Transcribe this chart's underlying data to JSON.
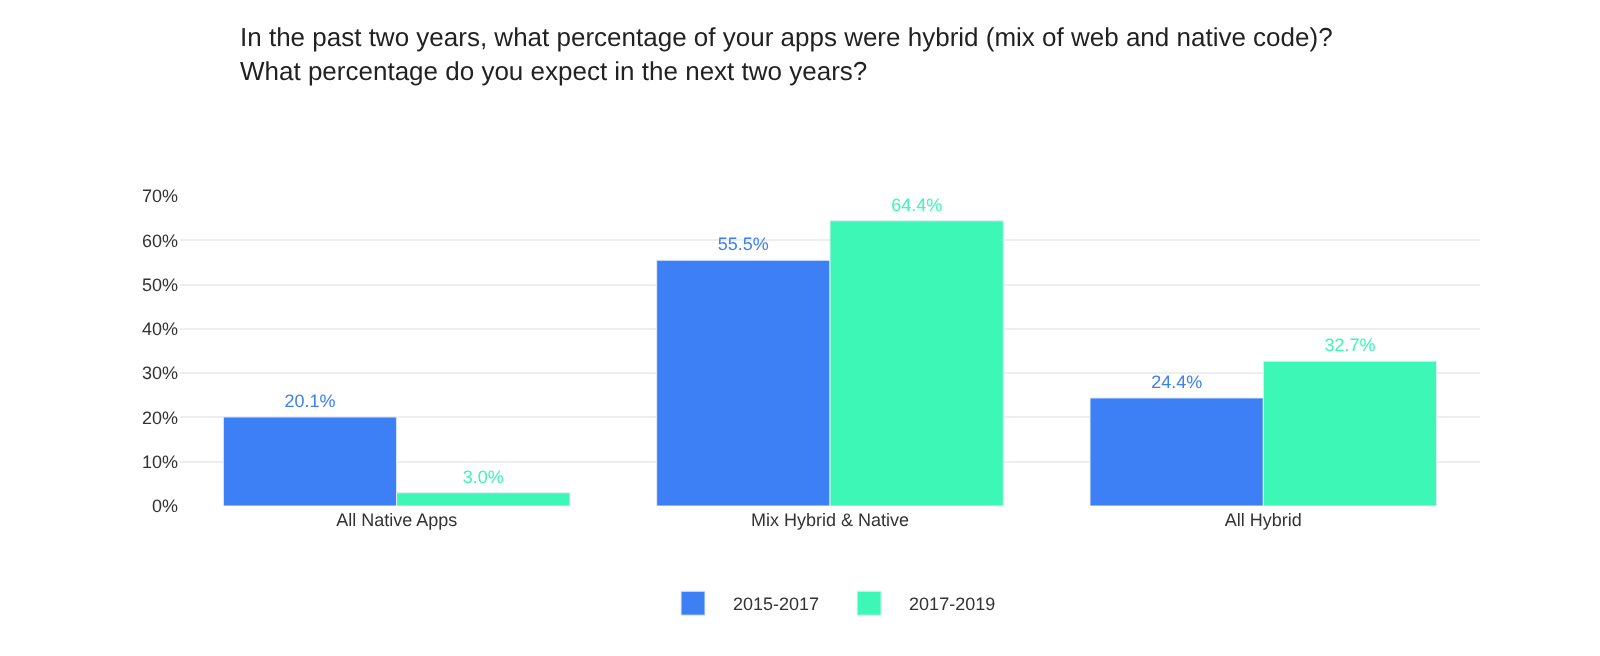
{
  "chart_data": {
    "type": "bar",
    "title": "In the past two years, what percentage of your apps were hybrid (mix of web and native code)?\nWhat percentage do you expect in the next two years?",
    "categories": [
      "All Native Apps",
      "Mix Hybrid & Native",
      "All Hybrid"
    ],
    "series": [
      {
        "name": "2015-2017",
        "color": "#3d7ff5",
        "values": [
          20.1,
          55.5,
          24.4
        ],
        "value_labels": [
          "20.1%",
          "55.5%",
          "24.4%"
        ]
      },
      {
        "name": "2017-2019",
        "color": "#3cf7b5",
        "values": [
          3.0,
          64.4,
          32.7
        ],
        "value_labels": [
          "3.0%",
          "64.4%",
          "32.7%"
        ]
      }
    ],
    "ylim": [
      0,
      70
    ],
    "yticks": [
      {
        "value": 0,
        "label": "0%"
      },
      {
        "value": 10,
        "label": "10%"
      },
      {
        "value": 20,
        "label": "20%"
      },
      {
        "value": 30,
        "label": "30%"
      },
      {
        "value": 40,
        "label": "40%"
      },
      {
        "value": 50,
        "label": "50%"
      },
      {
        "value": 60,
        "label": "60%"
      },
      {
        "value": 70,
        "label": "70%"
      }
    ],
    "grid": "y",
    "legend": "bottom"
  }
}
